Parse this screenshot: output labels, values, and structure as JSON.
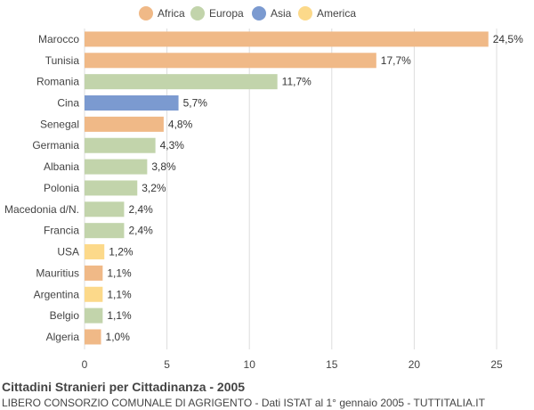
{
  "colors": {
    "Africa": "#f0b987",
    "Europa": "#c2d4ab",
    "Asia": "#7b9ad0",
    "America": "#fcd98a",
    "grid": "#dddddd",
    "text": "#333333"
  },
  "legend": [
    {
      "label": "Africa",
      "color": "#f0b987"
    },
    {
      "label": "Europa",
      "color": "#c2d4ab"
    },
    {
      "label": "Asia",
      "color": "#7b9ad0"
    },
    {
      "label": "America",
      "color": "#fcd98a"
    }
  ],
  "chart_data": {
    "type": "bar",
    "orientation": "horizontal",
    "categories": [
      "Marocco",
      "Tunisia",
      "Romania",
      "Cina",
      "Senegal",
      "Germania",
      "Albania",
      "Polonia",
      "Macedonia d/N.",
      "Francia",
      "USA",
      "Mauritius",
      "Argentina",
      "Belgio",
      "Algeria"
    ],
    "values": [
      24.5,
      17.7,
      11.7,
      5.7,
      4.8,
      4.3,
      3.8,
      3.2,
      2.4,
      2.4,
      1.2,
      1.1,
      1.1,
      1.1,
      1.0
    ],
    "value_labels": [
      "24,5%",
      "17,7%",
      "11,7%",
      "5,7%",
      "4,8%",
      "4,3%",
      "3,8%",
      "3,2%",
      "2,4%",
      "2,4%",
      "1,2%",
      "1,1%",
      "1,1%",
      "1,1%",
      "1,0%"
    ],
    "groups": [
      "Africa",
      "Africa",
      "Europa",
      "Asia",
      "Africa",
      "Europa",
      "Europa",
      "Europa",
      "Europa",
      "Europa",
      "America",
      "Africa",
      "America",
      "Europa",
      "Africa"
    ],
    "xlim": [
      0,
      25
    ],
    "xticks": [
      0,
      5,
      10,
      15,
      20,
      25
    ],
    "grid": true,
    "legend_position": "top"
  },
  "footer": {
    "title": "Cittadini Stranieri per Cittadinanza - 2005",
    "subtitle": "LIBERO CONSORZIO COMUNALE DI AGRIGENTO - Dati ISTAT al 1° gennaio 2005 - TUTTITALIA.IT"
  }
}
